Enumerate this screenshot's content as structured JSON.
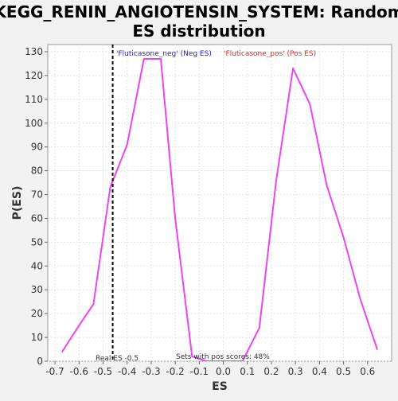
{
  "colors": {
    "page_background": "#f2f2f2",
    "plot_background": "#ffffff",
    "series": "#ee44ee",
    "neg_legend": "#2222dd",
    "pos_legend": "#ee2222",
    "grid": "#e4e4e4"
  },
  "chart_data": {
    "type": "line",
    "title_line1": "KEGG_RENIN_ANGIOTENSIN_SYSTEM: Random",
    "title_line2": "ES distribution",
    "xlabel": "ES",
    "ylabel": "P(ES)",
    "xlim": [
      -0.73,
      0.7
    ],
    "ylim": [
      0,
      133
    ],
    "grid": true,
    "x_ticks": [
      -0.7,
      -0.6,
      -0.5,
      -0.4,
      -0.3,
      -0.2,
      -0.1,
      0.0,
      0.1,
      0.2,
      0.3,
      0.4,
      0.5,
      0.6
    ],
    "x_tick_labels": [
      "-0.7",
      "-0.6",
      "-0.5",
      "-0.4",
      "-0.3",
      "-0.2",
      "-0.1",
      "0.0",
      "0.1",
      "0.2",
      "0.3",
      "0.4",
      "0.5",
      "0.6"
    ],
    "y_ticks": [
      0,
      10,
      20,
      30,
      40,
      50,
      60,
      70,
      80,
      90,
      100,
      110,
      120,
      130
    ],
    "y_tick_labels": [
      "0",
      "10",
      "20",
      "30",
      "40",
      "50",
      "60",
      "70",
      "80",
      "90",
      "100",
      "110",
      "120",
      "130"
    ],
    "series": [
      {
        "x": [
          -0.67,
          -0.6,
          -0.54,
          -0.47,
          -0.4,
          -0.33,
          -0.26,
          -0.2,
          -0.13,
          -0.07,
          0.0,
          0.08,
          0.15,
          0.22,
          0.29,
          0.36,
          0.43,
          0.5,
          0.57,
          0.64
        ],
        "y": [
          4,
          15,
          24,
          73,
          91,
          127,
          127,
          60,
          2,
          0,
          0,
          0,
          14,
          76,
          123,
          108,
          74,
          52,
          26,
          5
        ]
      }
    ],
    "legend": {
      "position": "top",
      "neg_label": "'Fluticasone_neg' (Neg ES)",
      "pos_label": "'Fluticasone_pos' (Pos ES)"
    },
    "real_es": {
      "x": -0.46,
      "label": "Real ES -0.5"
    },
    "pos_scores_label": "Sets with pos scores: 48%"
  }
}
